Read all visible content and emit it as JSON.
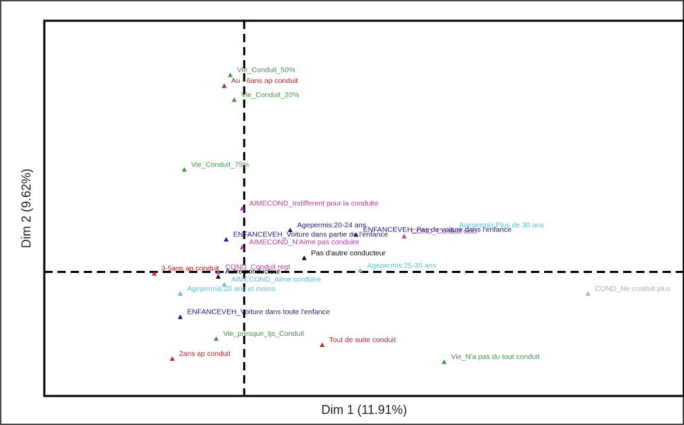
{
  "chart_data": {
    "type": "scatter",
    "title": "",
    "xlabel": "Dim 1 (11.91%)",
    "ylabel": "Dim 2 (9.62%)",
    "xlim": [
      -1.0,
      2.2
    ],
    "ylim": [
      -0.8,
      1.62
    ],
    "reference_lines": {
      "x": 0,
      "y": 0,
      "style": "dashed"
    },
    "grid": false,
    "colors": {
      "green": "#3a9a3a",
      "red": "#cc2020",
      "navy": "#1a1a8c",
      "magenta": "#c040a0",
      "cyan": "#5cc0d8",
      "black": "#000000",
      "gray": "#b0b0b0"
    },
    "points": [
      {
        "label": "Vie_Conduit_50%",
        "x": -0.07,
        "y": 1.27,
        "color": "green"
      },
      {
        "label": "Au - 6ans ap conduit",
        "x": -0.1,
        "y": 1.2,
        "color": "red"
      },
      {
        "label": "Vie_Conduit_20%",
        "x": -0.05,
        "y": 1.11,
        "color": "green"
      },
      {
        "label": "Vie_Conduit_75%",
        "x": -0.3,
        "y": 0.66,
        "color": "green"
      },
      {
        "label": "AIMECOND_Indifferent pour la conduite",
        "x": -0.01,
        "y": 0.41,
        "color": "magenta"
      },
      {
        "label": "Agepermis:20-24 ans",
        "x": 0.23,
        "y": 0.27,
        "color": "navy"
      },
      {
        "label": "ENFANCEVEH_Voiture dans partie de l'enfance",
        "x": -0.09,
        "y": 0.21,
        "color": "navy"
      },
      {
        "label": "COND_Conduit occt",
        "x": 0.8,
        "y": 0.23,
        "color": "magenta"
      },
      {
        "label": "Agepermis:Plus de 30 ans",
        "x": 1.04,
        "y": 0.27,
        "color": "cyan"
      },
      {
        "label": "ENFANCEVEH_Pas de voiture dans l'enfance",
        "x": 0.56,
        "y": 0.24,
        "color": "navy"
      },
      {
        "label": "AIMECOND_N'Aime pas conduire",
        "x": -0.01,
        "y": 0.16,
        "color": "magenta"
      },
      {
        "label": "Pas d'autre conducteur",
        "x": 0.3,
        "y": 0.09,
        "color": "black"
      },
      {
        "label": "3-5ans ap conduit",
        "x": -0.45,
        "y": -0.01,
        "color": "red"
      },
      {
        "label": "COND_Conduit regt",
        "x": -0.13,
        "y": 0.0,
        "color": "magenta"
      },
      {
        "label": "Agepermis:25-30 ans",
        "x": 0.58,
        "y": 0.01,
        "color": "cyan"
      },
      {
        "label": "Autre conducteur",
        "x": -0.13,
        "y": -0.03,
        "color": "black"
      },
      {
        "label": "AIMECOND_Aime conduire",
        "x": -0.1,
        "y": -0.08,
        "color": "cyan"
      },
      {
        "label": "Agepermis:20 ans et moins",
        "x": -0.32,
        "y": -0.14,
        "color": "cyan"
      },
      {
        "label": "COND_Ne conduit plus",
        "x": 1.72,
        "y": -0.14,
        "color": "gray"
      },
      {
        "label": "ENFANCEVEH_Voiture dans toute l'enfance",
        "x": -0.32,
        "y": -0.29,
        "color": "navy"
      },
      {
        "label": "Vie_presque_tjs_Conduit",
        "x": -0.14,
        "y": -0.43,
        "color": "green"
      },
      {
        "label": "Tout de suite conduit",
        "x": 0.39,
        "y": -0.47,
        "color": "red"
      },
      {
        "label": "2ans ap conduit",
        "x": -0.36,
        "y": -0.56,
        "color": "red"
      },
      {
        "label": "Vie_N'a pas du tout conduit",
        "x": 1.0,
        "y": -0.58,
        "color": "green"
      }
    ]
  }
}
